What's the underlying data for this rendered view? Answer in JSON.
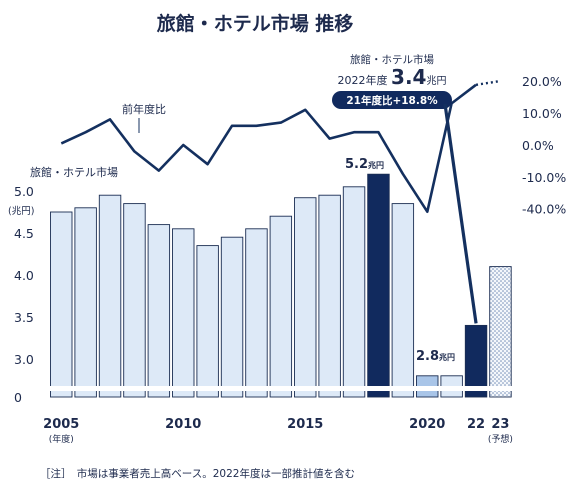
{
  "chart_data": {
    "type": "bar",
    "title": "旅館・ホテル市場 推移",
    "note": "［注］　市場は事業者売上高ベース。2022年度は一部推計値を含む",
    "categories": [
      "2005",
      "2006",
      "2007",
      "2008",
      "2009",
      "2010",
      "2011",
      "2012",
      "2013",
      "2014",
      "2015",
      "2016",
      "2017",
      "2018",
      "2019",
      "2020",
      "2021",
      "2022",
      "2023"
    ],
    "x_tick_labels": [
      {
        "index": 0,
        "label": "2005",
        "sub": "(年度)"
      },
      {
        "index": 5,
        "label": "2010",
        "sub": ""
      },
      {
        "index": 10,
        "label": "2015",
        "sub": ""
      },
      {
        "index": 15,
        "label": "2020",
        "sub": ""
      },
      {
        "index": 17,
        "label": "22",
        "sub": ""
      },
      {
        "index": 18,
        "label": "23",
        "sub": "(予想)"
      }
    ],
    "series": [
      {
        "name": "旅館・ホテル市場",
        "axis": "left",
        "values": [
          4.75,
          4.8,
          4.95,
          4.85,
          4.6,
          4.55,
          4.35,
          4.45,
          4.55,
          4.7,
          4.92,
          4.95,
          5.05,
          5.2,
          4.85,
          2.8,
          2.8,
          3.4,
          4.1
        ],
        "bar_styles": [
          "light",
          "light",
          "light",
          "light",
          "light",
          "light",
          "light",
          "light",
          "light",
          "light",
          "light",
          "light",
          "light",
          "dark",
          "light",
          "mid",
          "light",
          "dark",
          "dotted"
        ]
      },
      {
        "name": "前年度比",
        "axis": "right",
        "values": [
          0.5,
          4,
          8,
          -2,
          -8,
          0,
          -6,
          6,
          6,
          7,
          11,
          2,
          4,
          4,
          -9,
          -43,
          13,
          18.8,
          20
        ],
        "segment_styles": [
          "solid",
          "solid",
          "solid",
          "solid",
          "solid",
          "solid",
          "solid",
          "solid",
          "solid",
          "solid",
          "solid",
          "solid",
          "solid",
          "solid",
          "solid",
          "solid",
          "solid",
          "solid",
          "dotted"
        ]
      }
    ],
    "left_axis": {
      "unit": "(兆円)",
      "ticks": [
        "5.0",
        "4.5",
        "4.0",
        "3.5",
        "3.0",
        "0"
      ]
    },
    "right_axis": {
      "ticks": [
        "20.0%",
        "10.0%",
        "0.0%",
        "-10.0%",
        "-40.0%"
      ]
    },
    "axis_break": true,
    "annotations": {
      "bar_series_label": "旅館・ホテル市場",
      "line_series_label": "前年度比",
      "peak_value": "5.2",
      "peak_unit": "兆円",
      "low_value": "2.8",
      "low_unit": "兆円",
      "callout_title": "旅館・ホテル市場",
      "callout_year": "2022年度",
      "callout_value": "3.4",
      "callout_unit": "兆円",
      "callout_badge": "21年度比+18.8%"
    },
    "colors": {
      "bar_light": "#dde9f7",
      "bar_mid": "#a9c5e8",
      "bar_dark": "#112a5e",
      "bar_border": "#1a2d52",
      "line": "#14305f",
      "text": "#1d2a4d"
    }
  }
}
